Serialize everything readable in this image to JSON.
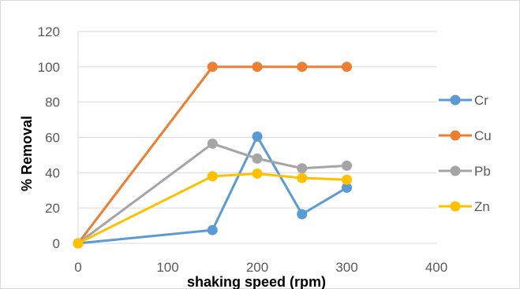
{
  "chart_data": {
    "type": "line",
    "title": "",
    "xlabel": "shaking speed (rpm)",
    "ylabel": "% Removal",
    "xlim": [
      0,
      400
    ],
    "ylim": [
      0,
      120
    ],
    "x_ticks": [
      "0",
      "100",
      "200",
      "300",
      "400"
    ],
    "y_ticks": [
      "0",
      "20",
      "40",
      "60",
      "80",
      "100",
      "120"
    ],
    "grid": true,
    "legend_position": "right",
    "series": [
      {
        "name": "Cr",
        "color": "#5b9bd5",
        "x": [
          0,
          150,
          200,
          250,
          300
        ],
        "y": [
          0,
          7.5,
          60.5,
          16.5,
          31.5
        ]
      },
      {
        "name": "Cu",
        "color": "#ed7d31",
        "x": [
          0,
          150,
          200,
          250,
          300
        ],
        "y": [
          0,
          100,
          100,
          100,
          100
        ]
      },
      {
        "name": "Pb",
        "color": "#a5a5a5",
        "x": [
          0,
          150,
          200,
          250,
          300
        ],
        "y": [
          0,
          56.5,
          48,
          42.5,
          44
        ]
      },
      {
        "name": "Zn",
        "color": "#ffc000",
        "x": [
          0,
          150,
          200,
          250,
          300
        ],
        "y": [
          0,
          38,
          39.5,
          37,
          36
        ]
      }
    ]
  }
}
